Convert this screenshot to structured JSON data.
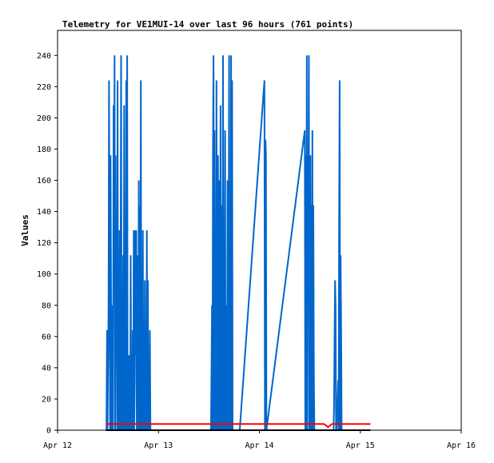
{
  "chart_data": {
    "type": "line",
    "title": "Telemetry for VE1MUI-14 over last 96 hours (761 points)",
    "xlabel": "",
    "ylabel": "Values",
    "ylim": [
      0,
      256
    ],
    "xlim": [
      0,
      4
    ],
    "yticks": [
      0,
      20,
      40,
      60,
      80,
      100,
      120,
      140,
      160,
      180,
      200,
      220,
      240
    ],
    "xticks": [
      {
        "value": 0,
        "label": "Apr 12"
      },
      {
        "value": 1,
        "label": "Apr 13"
      },
      {
        "value": 2,
        "label": "Apr 14"
      },
      {
        "value": 3,
        "label": "Apr 15"
      },
      {
        "value": 4,
        "label": "Apr 16"
      }
    ],
    "grid": false,
    "series": [
      {
        "color": "#0066cc",
        "x": [
          0.485,
          0.49,
          0.495,
          0.505,
          0.51,
          0.52,
          0.525,
          0.535,
          0.54,
          0.545,
          0.55,
          0.555,
          0.56,
          0.565,
          0.57,
          0.575,
          0.58,
          0.585,
          0.59,
          0.595,
          0.6,
          0.605,
          0.61,
          0.615,
          0.62,
          0.625,
          0.63,
          0.635,
          0.64,
          0.645,
          0.65,
          0.655,
          0.66,
          0.665,
          0.67,
          0.675,
          0.68,
          0.685,
          0.69,
          0.695,
          0.7,
          0.705,
          0.71,
          0.72,
          0.725,
          0.73,
          0.735,
          0.74,
          0.745,
          0.75,
          0.755,
          0.76,
          0.765,
          0.77,
          0.775,
          0.78,
          0.785,
          0.79,
          0.795,
          0.8,
          0.805,
          0.81,
          0.815,
          0.82,
          0.825,
          0.83,
          0.835,
          0.84,
          0.845,
          0.85,
          0.855,
          0.86,
          0.865,
          0.87,
          0.875,
          0.88,
          0.885,
          0.89,
          0.895,
          0.9,
          0.905,
          0.91,
          0.915,
          0.92,
          0.925,
          0.93,
          0.935,
          0.94,
          0.945,
          0.95,
          0.955,
          0.96,
          0.965,
          0.97,
          1.52,
          1.525,
          1.53,
          1.535,
          1.54,
          1.545,
          1.55,
          1.555,
          1.56,
          1.565,
          1.57,
          1.575,
          1.58,
          1.585,
          1.59,
          1.595,
          1.6,
          1.605,
          1.61,
          1.615,
          1.62,
          1.625,
          1.63,
          1.635,
          1.64,
          1.645,
          1.65,
          1.655,
          1.66,
          1.665,
          1.67,
          1.675,
          1.68,
          1.685,
          1.69,
          1.695,
          1.7,
          1.705,
          1.71,
          1.715,
          1.72,
          1.725,
          1.73,
          1.735,
          1.74,
          1.745,
          1.75,
          1.755,
          1.76,
          1.765,
          1.77,
          1.775,
          1.78,
          1.785,
          1.79,
          1.795,
          1.8,
          1.805,
          2.05,
          2.055,
          2.06,
          2.065,
          2.07,
          2.45,
          2.455,
          2.46,
          2.465,
          2.47,
          2.475,
          2.48,
          2.485,
          2.49,
          2.495,
          2.5,
          2.505,
          2.51,
          2.515,
          2.52,
          2.525,
          2.53,
          2.535,
          2.54,
          2.545,
          2.55,
          2.555,
          2.56,
          2.565,
          2.57,
          2.735,
          2.74,
          2.745,
          2.75,
          2.755,
          2.76,
          2.765,
          2.78,
          2.785,
          2.79,
          2.795,
          2.8,
          2.805,
          2.81,
          2.815,
          2.82,
          2.825,
          2.83,
          2.835
        ],
        "values": [
          0,
          64,
          0,
          80,
          224,
          0,
          176,
          0,
          16,
          80,
          0,
          208,
          96,
          240,
          0,
          176,
          48,
          96,
          0,
          224,
          0,
          88,
          0,
          128,
          0,
          104,
          240,
          0,
          32,
          0,
          112,
          0,
          208,
          0,
          80,
          0,
          224,
          0,
          240,
          0,
          16,
          0,
          48,
          0,
          112,
          0,
          32,
          0,
          64,
          0,
          128,
          0,
          32,
          128,
          48,
          128,
          0,
          80,
          112,
          0,
          160,
          0,
          144,
          0,
          224,
          0,
          96,
          0,
          128,
          0,
          48,
          0,
          96,
          0,
          64,
          0,
          128,
          0,
          96,
          0,
          32,
          0,
          64,
          0,
          0,
          0,
          0,
          0,
          0,
          0,
          0,
          0,
          0,
          0,
          0,
          32,
          80,
          0,
          176,
          240,
          0,
          192,
          0,
          128,
          0,
          224,
          0,
          80,
          176,
          0,
          160,
          112,
          0,
          208,
          0,
          144,
          0,
          64,
          240,
          0,
          96,
          0,
          192,
          0,
          32,
          80,
          0,
          160,
          0,
          96,
          240,
          0,
          48,
          0,
          240,
          0,
          224,
          0,
          0,
          0,
          0,
          0,
          0,
          0,
          0,
          0,
          0,
          0,
          0,
          0,
          0,
          0,
          224,
          0,
          186,
          176,
          0,
          192,
          0,
          176,
          0,
          240,
          0,
          176,
          112,
          240,
          0,
          80,
          176,
          0,
          144,
          0,
          192,
          0,
          144,
          32,
          0,
          0,
          0,
          0,
          0,
          0,
          0,
          16,
          64,
          96,
          80,
          0,
          0,
          32,
          0,
          128,
          224,
          0,
          112,
          64,
          0,
          0,
          0,
          0,
          0
        ]
      },
      {
        "color": "#ff0000",
        "x": [
          0.48,
          2.58,
          2.6,
          2.62,
          2.64,
          2.66,
          2.68,
          2.7,
          2.72,
          3.1
        ],
        "values": [
          4,
          4,
          4,
          4,
          4,
          3,
          2,
          3,
          4,
          4
        ]
      },
      {
        "color": "#000000",
        "x": [
          0.48,
          3.1
        ],
        "values": [
          0,
          0
        ]
      }
    ]
  }
}
